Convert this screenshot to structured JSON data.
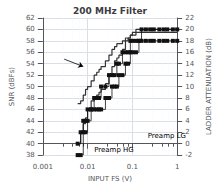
{
  "chart_data": {
    "type": "line",
    "title": "200 MHz Filter",
    "xlabel": "INPUT FS (V)",
    "ylabel": "SNR (dBFs)",
    "y2label": "LADDER ATTENUATION (dB)",
    "log": "x",
    "grid": true,
    "xlim": [
      0.001,
      1.0
    ],
    "xticks": [
      0.001,
      0.01,
      0.1,
      1
    ],
    "ylim": [
      38,
      62
    ],
    "yticks": [
      38,
      40,
      42,
      44,
      46,
      48,
      50,
      52,
      54,
      56,
      58,
      60,
      62
    ],
    "y2lim": [
      -2,
      22
    ],
    "y2ticks": [
      -2,
      0,
      2,
      4,
      6,
      8,
      10,
      12,
      14,
      16,
      18,
      20,
      22
    ],
    "x": [
      0.006,
      0.007,
      0.008,
      0.009,
      0.01,
      0.012,
      0.014,
      0.016,
      0.018,
      0.02,
      0.025,
      0.03,
      0.035,
      0.04,
      0.045,
      0.05,
      0.06,
      0.07,
      0.08,
      0.09,
      0.1,
      0.12,
      0.14,
      0.16,
      0.2,
      0.25,
      0.3,
      0.4,
      0.5,
      0.6,
      0.8,
      1.0
    ],
    "series": [
      {
        "color": "#333333",
        "line_style": "steps",
        "values": [
          40.0,
          42.0,
          43.5,
          44.5,
          46.0,
          47.5,
          48.0,
          48.5,
          49.0,
          49.5,
          50.5,
          52.0,
          53.5,
          54.5,
          55.0,
          55.5,
          56.5,
          58.0,
          58.5,
          59.0,
          59.5,
          60.0,
          60.0,
          60.0,
          60.0,
          60.0,
          60.0,
          60.0,
          60.0,
          60.0,
          60.0,
          60.0
        ]
      },
      {
        "color": "#333333",
        "line_style": "steps",
        "values": [
          47.0,
          47.5,
          48.5,
          49.5,
          50.0,
          51.0,
          52.0,
          52.5,
          53.0,
          53.5,
          54.5,
          55.5,
          56.5,
          57.0,
          57.5,
          57.5,
          58.0,
          58.5,
          58.5,
          59.0,
          59.0,
          59.5,
          59.5,
          59.5,
          59.5,
          59.5,
          59.5,
          59.5,
          59.5,
          59.5,
          59.5,
          59.5
        ]
      },
      {
        "axis": "y2",
        "color": "#111111",
        "marker": "square",
        "line_style": "steps",
        "values": [
          -2.0,
          -2.0,
          2.0,
          2.0,
          4.0,
          6.0,
          6.0,
          6.0,
          6.0,
          6.0,
          8.0,
          8.0,
          10.0,
          10.0,
          10.0,
          12.0,
          12.0,
          14.0,
          14.0,
          16.0,
          16.0,
          16.0,
          18.0,
          18.0,
          18.0,
          18.0,
          18.0,
          18.0,
          18.0,
          18.0,
          18.0,
          18.0
        ]
      },
      {
        "axis": "y2",
        "color": "#111111",
        "marker": "square",
        "line_style": "steps",
        "values": [
          0.0,
          2.0,
          4.0,
          4.0,
          6.0,
          6.0,
          8.0,
          8.0,
          8.0,
          10.0,
          10.0,
          12.0,
          12.0,
          12.0,
          14.0,
          14.0,
          16.0,
          16.0,
          16.0,
          18.0,
          18.0,
          18.0,
          18.0,
          20.0,
          20.0,
          20.0,
          20.0,
          20.0,
          20.0,
          20.0,
          20.0,
          20.0
        ]
      }
    ],
    "annotations": [
      {
        "text": "Preamp HG",
        "x": 0.014,
        "y": 38.3
      },
      {
        "text": "Preamp LG",
        "x": 0.22,
        "y": 40.8
      }
    ],
    "arrows": [
      {
        "x": 0.008,
        "y": 53.5,
        "from_x": 0.003,
        "from_y": 54.8
      }
    ]
  }
}
